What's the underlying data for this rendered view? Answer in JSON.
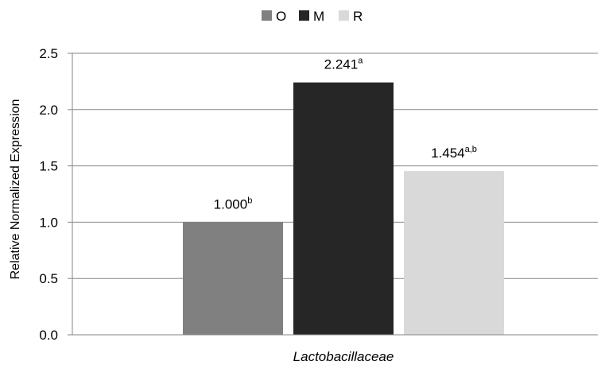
{
  "chart_data": {
    "type": "bar",
    "categories": [
      "Lactobacillaceae"
    ],
    "series": [
      {
        "name": "O",
        "values": [
          1.0
        ],
        "label": "1.000",
        "superscript": "b",
        "color": "#808080"
      },
      {
        "name": "M",
        "values": [
          2.241
        ],
        "label": "2.241",
        "superscript": "a",
        "color": "#262626"
      },
      {
        "name": "R",
        "values": [
          1.454
        ],
        "label": "1.454",
        "superscript": "a,b",
        "color": "#d9d9d9"
      }
    ],
    "ylabel": "Relative Normalized Expression",
    "xlabel": "",
    "ylim": [
      0,
      2.5
    ],
    "yticks": [
      "0.0",
      "0.5",
      "1.0",
      "1.5",
      "2.0",
      "2.5"
    ],
    "grid": true,
    "legend": "top-center"
  }
}
